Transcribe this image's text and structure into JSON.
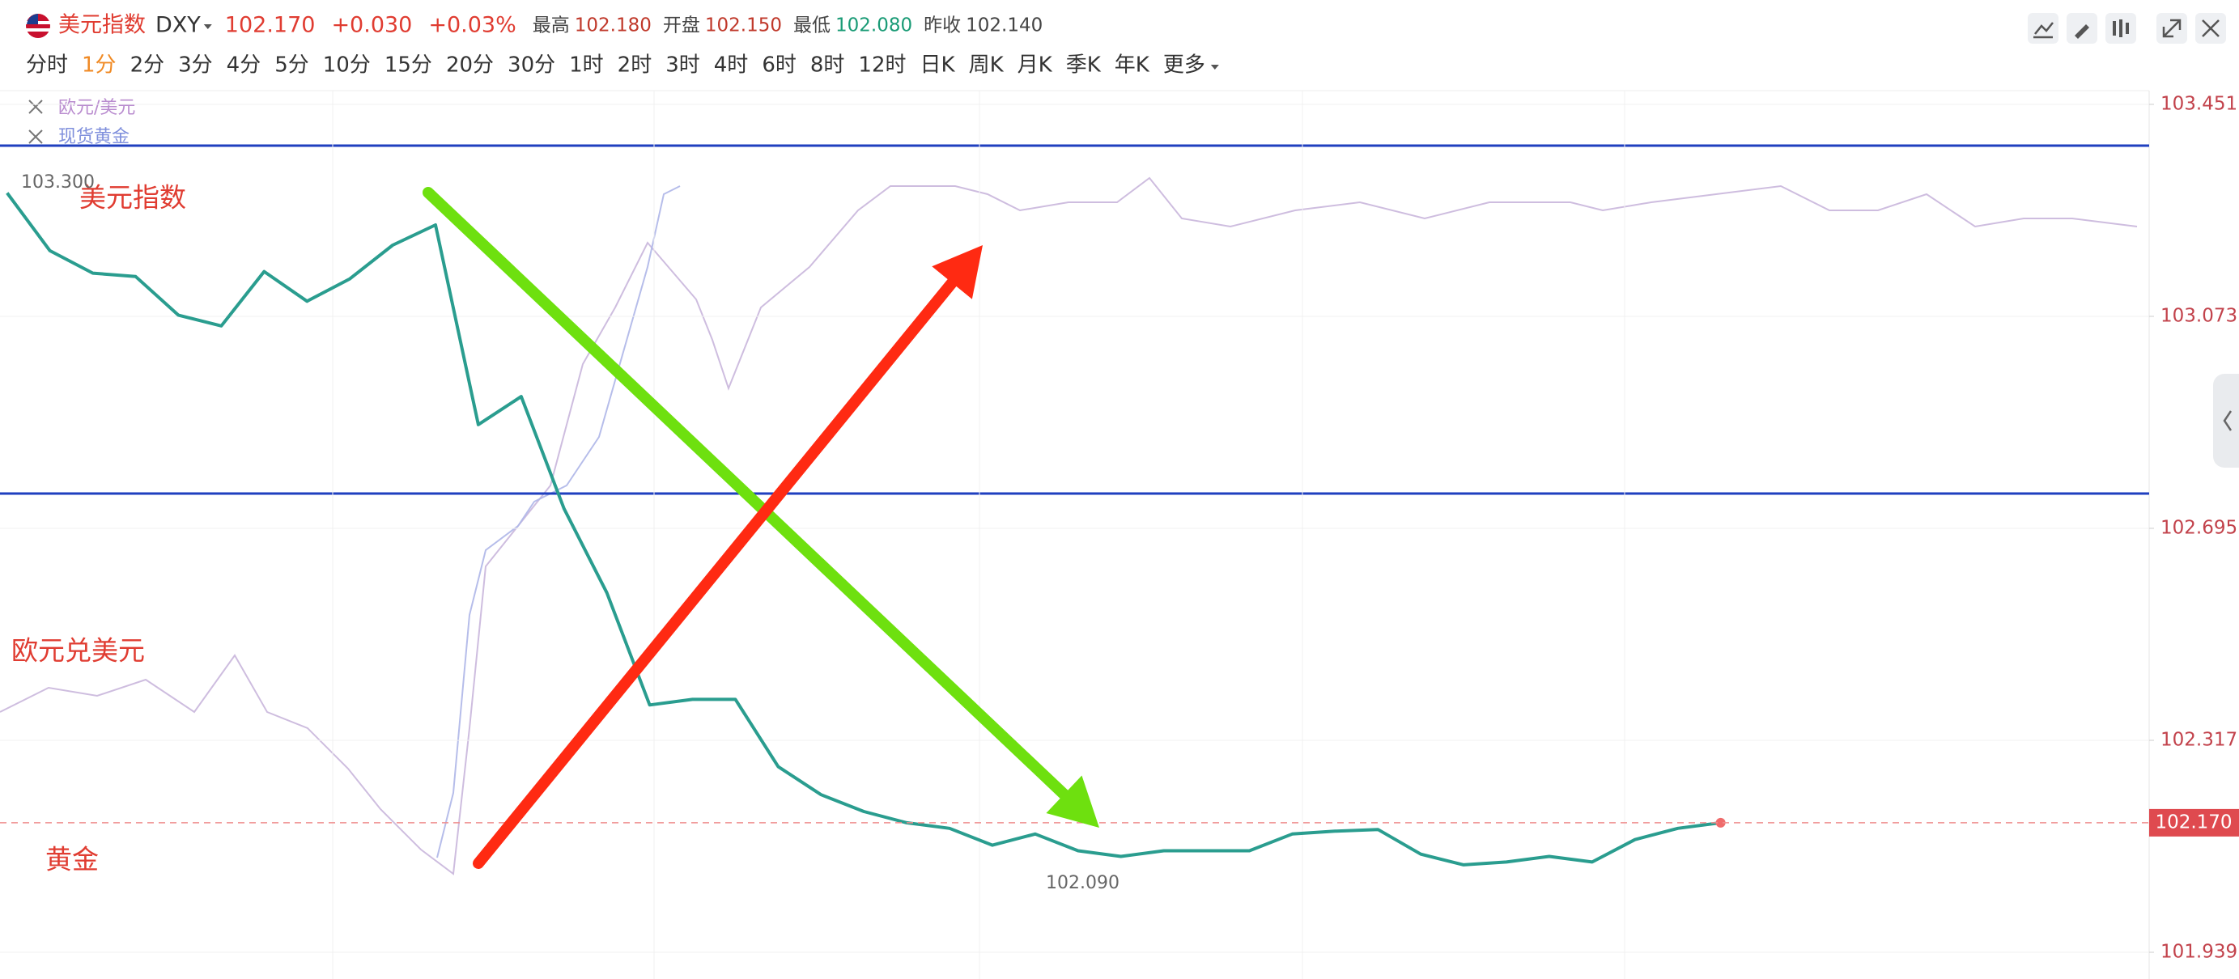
{
  "header": {
    "name": "美元指数",
    "symbol": "DXY",
    "price": "102.170",
    "change": "+0.030",
    "change_pct": "+0.03%",
    "stats": [
      {
        "label": "最高",
        "value": "102.180"
      },
      {
        "label": "开盘",
        "value": "102.150"
      },
      {
        "label": "最低",
        "value": "102.080"
      },
      {
        "label": "昨收",
        "value": "102.140"
      }
    ]
  },
  "periods": [
    "分时",
    "1分",
    "2分",
    "3分",
    "4分",
    "5分",
    "10分",
    "15分",
    "20分",
    "30分",
    "1时",
    "2时",
    "3时",
    "4时",
    "6时",
    "8时",
    "12时",
    "日K",
    "周K",
    "月K",
    "季K",
    "年K",
    "更多"
  ],
  "active_period": "1分",
  "overlays": [
    "欧元/美元",
    "现货黄金"
  ],
  "annotations": {
    "dxy": "美元指数",
    "eurusd": "欧元兑美元",
    "gold": "黄金",
    "high": "103.300",
    "low": "102.090"
  },
  "chart_data": {
    "type": "line",
    "color": "#2a9d8f",
    "values": [
      103.293,
      103.19,
      103.15,
      103.144,
      103.075,
      103.056,
      103.153,
      103.1,
      103.14,
      103.2,
      103.236,
      102.88,
      102.93,
      102.73,
      102.58,
      102.38,
      102.39,
      102.39,
      102.27,
      102.22,
      102.19,
      102.17,
      102.16,
      102.13,
      102.15,
      102.12,
      102.11,
      102.12,
      102.12,
      102.12,
      102.15,
      102.155,
      102.158,
      102.114,
      102.095,
      102.1,
      102.11,
      102.1,
      102.14,
      102.16,
      102.17
    ],
    "ylim": [
      101.939,
      103.451
    ],
    "yticks": [
      103.451,
      103.073,
      102.695,
      102.317,
      101.939
    ],
    "grid": true,
    "current_price": {
      "value": 102.17,
      "label": "102.170"
    }
  }
}
